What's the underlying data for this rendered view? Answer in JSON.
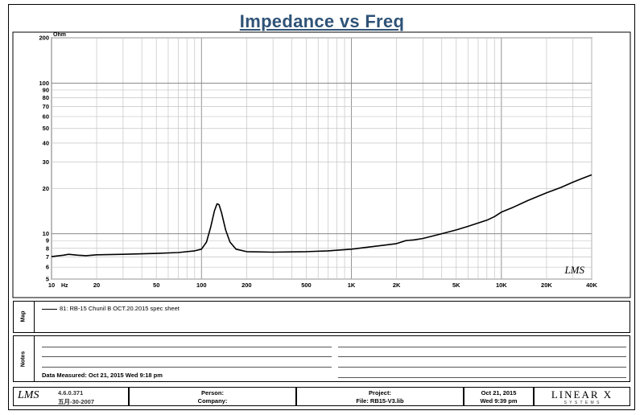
{
  "header": {
    "title": "Impedance vs Freq"
  },
  "chart_data": {
    "type": "line",
    "title": "Impedance vs Freq",
    "xscale": "log",
    "yscale": "log",
    "xlim": [
      10,
      40000
    ],
    "ylim": [
      5,
      200
    ],
    "y_unit": "Ohm",
    "x_unit": "Hz",
    "x_tick_labels": [
      {
        "v": 10,
        "t": "10"
      },
      {
        "v": 20,
        "t": "20"
      },
      {
        "v": 50,
        "t": "50"
      },
      {
        "v": 100,
        "t": "100"
      },
      {
        "v": 200,
        "t": "200"
      },
      {
        "v": 500,
        "t": "500"
      },
      {
        "v": 1000,
        "t": "1K"
      },
      {
        "v": 2000,
        "t": "2K"
      },
      {
        "v": 5000,
        "t": "5K"
      },
      {
        "v": 10000,
        "t": "10K"
      },
      {
        "v": 20000,
        "t": "20K"
      },
      {
        "v": 40000,
        "t": "40K"
      }
    ],
    "y_tick_labels": [
      {
        "v": 200,
        "t": "200"
      },
      {
        "v": 100,
        "t": "100"
      },
      {
        "v": 90,
        "t": "90"
      },
      {
        "v": 80,
        "t": "80"
      },
      {
        "v": 70,
        "t": "70"
      },
      {
        "v": 60,
        "t": "60"
      },
      {
        "v": 50,
        "t": "50"
      },
      {
        "v": 40,
        "t": "40"
      },
      {
        "v": 30,
        "t": "30"
      },
      {
        "v": 20,
        "t": "20"
      },
      {
        "v": 10,
        "t": "10"
      },
      {
        "v": 9,
        "t": "9"
      },
      {
        "v": 8,
        "t": "8"
      },
      {
        "v": 7,
        "t": "7"
      },
      {
        "v": 6,
        "t": "6"
      },
      {
        "v": 5,
        "t": "5"
      }
    ],
    "grid": true,
    "series": [
      {
        "name": "81: RB-15  Chunil B OCT.20.2015 spec sheet",
        "color": "#000000",
        "points": [
          [
            10,
            7.05
          ],
          [
            12,
            7.2
          ],
          [
            13,
            7.3
          ],
          [
            15,
            7.2
          ],
          [
            17,
            7.15
          ],
          [
            20,
            7.25
          ],
          [
            30,
            7.3
          ],
          [
            50,
            7.4
          ],
          [
            70,
            7.5
          ],
          [
            90,
            7.7
          ],
          [
            100,
            7.9
          ],
          [
            108,
            8.8
          ],
          [
            115,
            11.0
          ],
          [
            122,
            14.2
          ],
          [
            127,
            15.8
          ],
          [
            131,
            15.6
          ],
          [
            136,
            13.8
          ],
          [
            145,
            10.6
          ],
          [
            155,
            8.8
          ],
          [
            170,
            7.9
          ],
          [
            200,
            7.6
          ],
          [
            300,
            7.55
          ],
          [
            500,
            7.6
          ],
          [
            700,
            7.7
          ],
          [
            1000,
            7.9
          ],
          [
            1500,
            8.3
          ],
          [
            2000,
            8.6
          ],
          [
            2300,
            9.0
          ],
          [
            2600,
            9.1
          ],
          [
            3000,
            9.3
          ],
          [
            4000,
            10.0
          ],
          [
            5000,
            10.6
          ],
          [
            6000,
            11.2
          ],
          [
            8000,
            12.3
          ],
          [
            9000,
            13.0
          ],
          [
            10000,
            13.9
          ],
          [
            12000,
            15.0
          ],
          [
            15000,
            16.6
          ],
          [
            20000,
            18.7
          ],
          [
            25000,
            20.3
          ],
          [
            30000,
            22.0
          ],
          [
            35000,
            23.4
          ],
          [
            40000,
            24.6
          ]
        ]
      }
    ]
  },
  "map": {
    "label": "Map",
    "legend_entry": "81: RB-15  Chunil B OCT.20.2015 spec sheet"
  },
  "notes": {
    "label": "Notes",
    "measured": "Data Measured: Oct 21, 2015  Wed  9:18 pm"
  },
  "footer": {
    "version": "4.6.0.371",
    "date_cn": "五月-30-2007",
    "person_label": "Person:",
    "company_label": "Company:",
    "project_label": "Project:",
    "file_label": "File: RB15-V3.lib",
    "date": "Oct 21, 2015",
    "time": "Wed  9:39 pm",
    "brand": "LINEAR X",
    "brand_sub": "S Y S T E M S",
    "lms": "LMS"
  },
  "watermark": "LMS"
}
